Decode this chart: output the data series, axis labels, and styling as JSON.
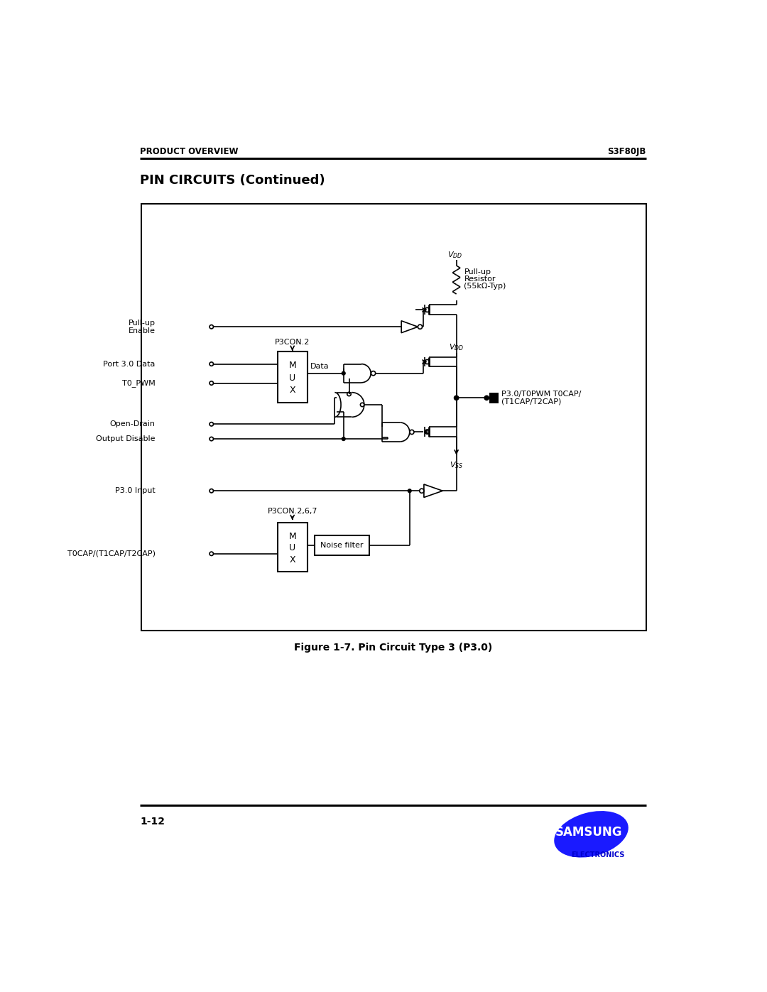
{
  "page_title_left": "PRODUCT OVERVIEW",
  "page_title_right": "S3F80JB",
  "section_title": "PIN CIRCUITS (Continued)",
  "figure_caption": "Figure 1-7. Pin Circuit Type 3 (P3.0)",
  "page_number": "1-12",
  "bg_color": "#ffffff",
  "samsung_blue": "#1a1aff",
  "electronics_blue": "#0000cc",
  "lw": 1.2,
  "lw_thick": 2.2
}
